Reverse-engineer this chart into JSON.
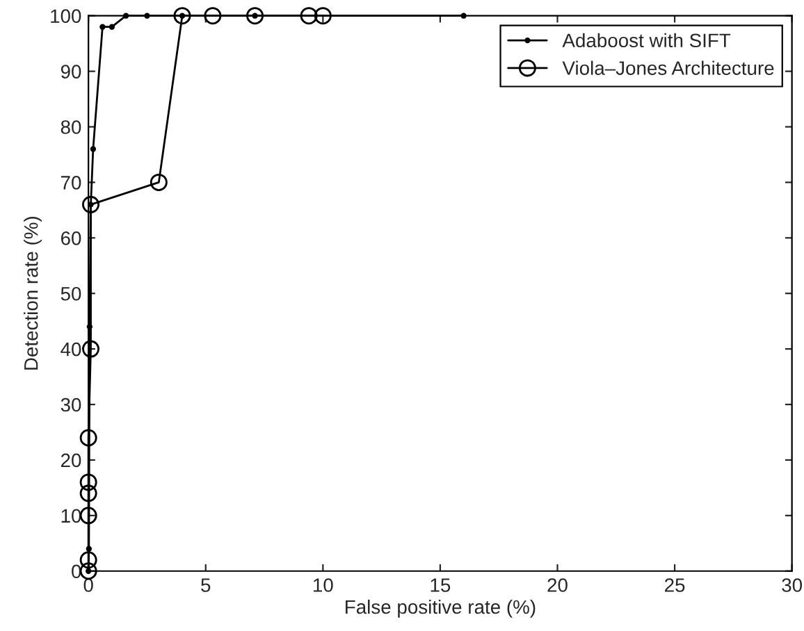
{
  "chart_data": {
    "type": "line",
    "xlabel": "False positive rate (%)",
    "ylabel": "Detection rate (%)",
    "xlim": [
      0,
      30
    ],
    "xticks": [
      0,
      5,
      10,
      15,
      20,
      25,
      30
    ],
    "ylim": [
      0,
      100
    ],
    "yticks": [
      0,
      10,
      20,
      30,
      40,
      50,
      60,
      70,
      80,
      90,
      100
    ],
    "grid": false,
    "legend": "top right",
    "series": [
      {
        "name": "Adaboost with SIFT",
        "color": "#000000",
        "marker": "point",
        "x": [
          0,
          0.02,
          0.05,
          0.1,
          0.2,
          0.6,
          1.0,
          1.6,
          2.5,
          4.0,
          7.1,
          16.0
        ],
        "values": [
          0,
          4,
          44,
          66,
          76,
          98,
          98,
          100,
          100,
          100,
          100,
          100
        ]
      },
      {
        "name": "Viola–Jones Architecture",
        "color": "#000000",
        "marker": "circle",
        "x": [
          0,
          0,
          0,
          0,
          0,
          0,
          0.1,
          0.1,
          3.0,
          4.0,
          5.3,
          7.1,
          9.4,
          10.0
        ],
        "values": [
          0,
          2,
          10,
          14,
          16,
          24,
          40,
          66,
          70,
          100,
          100,
          100,
          100,
          100
        ]
      }
    ]
  }
}
